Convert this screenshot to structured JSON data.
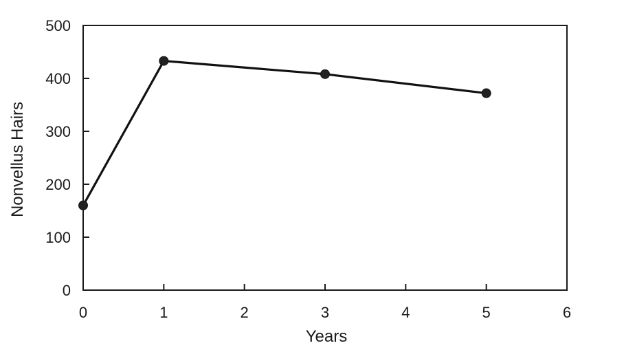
{
  "chart_data": {
    "type": "line",
    "title": "",
    "xlabel": "Years",
    "ylabel": "Nonvellus Hairs",
    "xlim": [
      0,
      6
    ],
    "ylim": [
      0,
      500
    ],
    "x_ticks": [
      "0",
      "1",
      "2",
      "3",
      "4",
      "5",
      "6"
    ],
    "y_ticks": [
      "0",
      "100",
      "200",
      "300",
      "400",
      "500"
    ],
    "grid": false,
    "legend": "none",
    "series": [
      {
        "x": [
          0,
          1,
          3,
          5
        ],
        "y": [
          160,
          433,
          408,
          372
        ],
        "color": "#111111",
        "marker": "circle"
      }
    ]
  }
}
